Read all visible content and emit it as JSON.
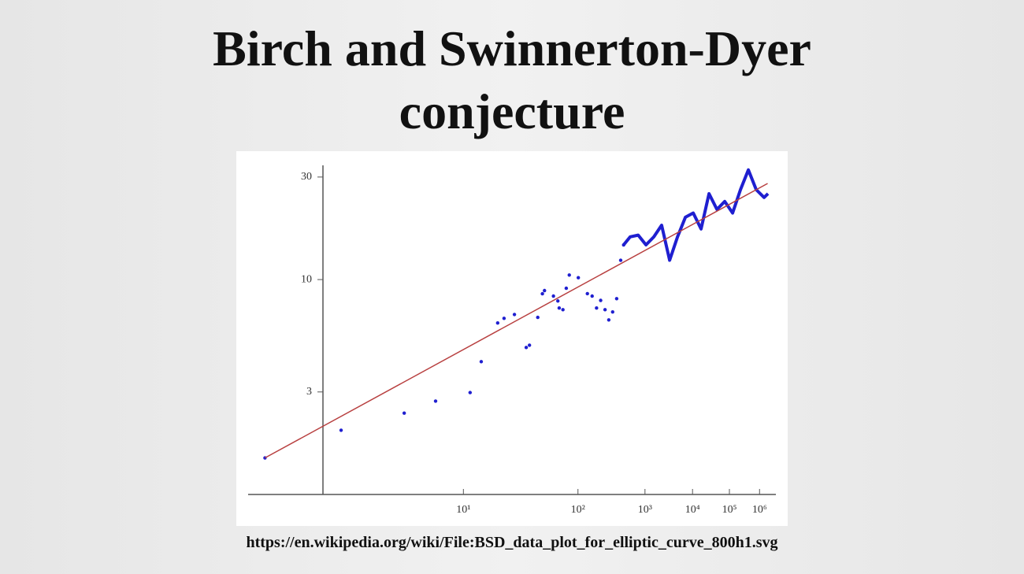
{
  "chart_data": {
    "type": "scatter",
    "title": "Birch and Swinnerton-Dyer conjecture",
    "xscale": "loglog",
    "yscale": "log",
    "xlim": [
      1.87,
      4200000
    ],
    "ylim": [
      1,
      34
    ],
    "xticks": [
      {
        "value": 10,
        "label": "10¹"
      },
      {
        "value": 100,
        "label": "10²"
      },
      {
        "value": 1000,
        "label": "10³"
      },
      {
        "value": 10000,
        "label": "10⁴"
      },
      {
        "value": 100000,
        "label": "10⁵"
      },
      {
        "value": 1000000,
        "label": "10⁶"
      }
    ],
    "yticks": [
      3,
      10,
      30
    ],
    "series": [
      {
        "style": "points",
        "color": "#1f1fd0",
        "x": [
          2,
          3,
          5,
          7,
          11,
          13,
          17,
          19,
          23,
          29,
          31,
          37,
          41,
          43,
          53,
          59,
          61,
          67,
          73,
          79,
          101,
          131,
          151,
          173,
          197,
          227,
          257,
          293,
          337,
          389,
          433
        ],
        "values": [
          1.48,
          1.99,
          2.39,
          2.72,
          2.98,
          4.15,
          6.28,
          6.6,
          6.88,
          4.83,
          4.95,
          6.67,
          8.59,
          8.89,
          8.38,
          7.95,
          7.37,
          7.24,
          9.11,
          10.5,
          10.2,
          8.6,
          8.38,
          7.37,
          8.0,
          7.24,
          6.49,
          7.07,
          8.15,
          12.3,
          14.5
        ]
      },
      {
        "style": "line",
        "color": "#1f1fd0",
        "x": [
          433,
          552,
          757,
          1043,
          1460,
          2080,
          3040,
          4490,
          6780,
          10400,
          16300,
          26300,
          43400,
          72600,
          125000,
          222000,
          405000,
          759000,
          1470000,
          2070000
        ],
        "values": [
          14.5,
          15.8,
          16.1,
          14.5,
          15.8,
          17.9,
          12.3,
          15.8,
          19.5,
          20.4,
          17.2,
          25.1,
          21.2,
          23.1,
          20.4,
          26.2,
          32.4,
          26.2,
          24.1,
          25.1
        ]
      },
      {
        "style": "line",
        "color": "#b84040",
        "x": [
          2,
          2000000
        ],
        "values": [
          1.48,
          28
        ]
      }
    ],
    "source": "https://en.wikipedia.org/wiki/File:BSD_data_plot_for_elliptic_curve_800h1.svg"
  }
}
